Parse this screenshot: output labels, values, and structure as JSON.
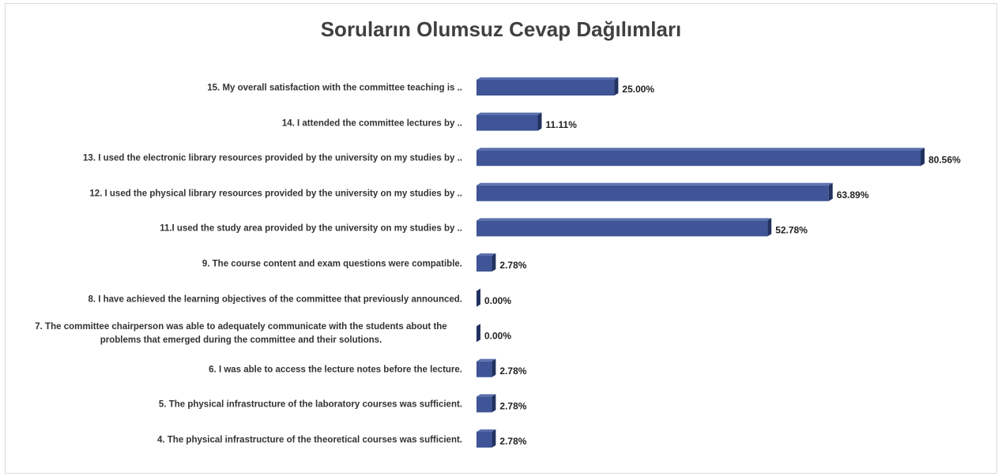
{
  "chart_data": {
    "type": "bar",
    "orientation": "horizontal",
    "title": "Soruların Olumsuz Cevap Dağılımları",
    "categories": [
      "15. My overall satisfaction with the committee teaching is ..",
      "14. I attended the committee lectures by ..",
      "13. I used the electronic library resources provided by the university on my studies by ..",
      "12. I used the physical library resources provided by the university on my studies by ..",
      "11.I used the study area provided by the university on my studies by ..",
      "9. The course content and exam questions were compatible.",
      "8. I have achieved the learning objectives of the committee that previously announced.",
      "7. The committee chairperson was able to adequately communicate with the students about the problems that emerged during the committee and their solutions.",
      "6. I was able to access the lecture notes before the lecture.",
      "5. The physical infrastructure of the laboratory courses was sufficient.",
      "4. The physical infrastructure of the theoretical courses was sufficient."
    ],
    "values": [
      25.0,
      11.11,
      80.56,
      63.89,
      52.78,
      2.78,
      0.0,
      0.0,
      2.78,
      2.78,
      2.78
    ],
    "value_labels": [
      "25.00%",
      "11.11%",
      "80.56%",
      "63.89%",
      "52.78%",
      "2.78%",
      "0.00%",
      "0.00%",
      "2.78%",
      "2.78%",
      "2.78%"
    ],
    "color": "#3f5597"
  }
}
